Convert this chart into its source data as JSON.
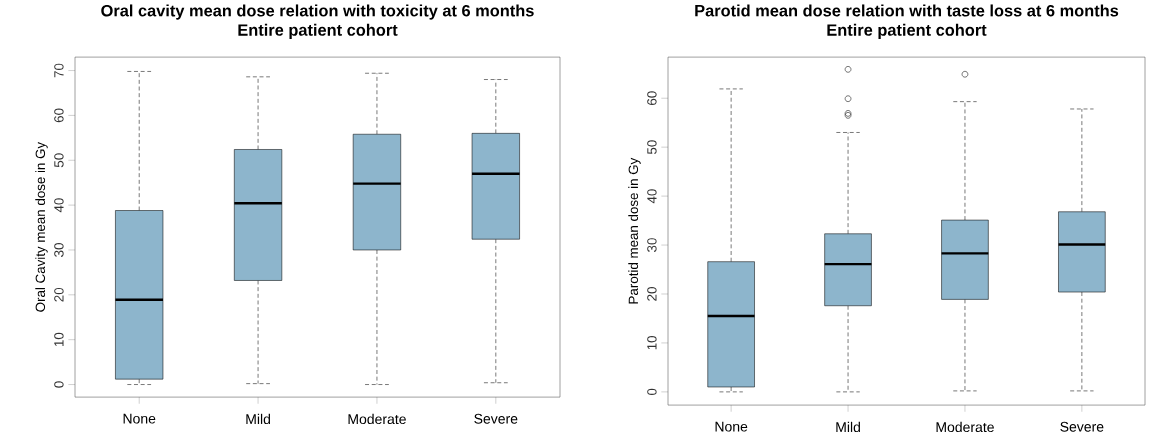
{
  "chart_data": [
    {
      "type": "box",
      "title": "Oral cavity mean dose relation with toxicity at 6 months",
      "subtitle": "Entire patient cohort",
      "ylabel": "Oral Cavity mean dose in Gy",
      "categories": [
        "None",
        "Mild",
        "Moderate",
        "Severe"
      ],
      "color": "#8db5cc",
      "ylim": [
        -2.8,
        73
      ],
      "yticks": [
        0,
        10,
        20,
        30,
        40,
        50,
        60,
        70
      ],
      "boxes": [
        {
          "low": 0,
          "q1": 1.2,
          "median": 18.9,
          "q3": 38.8,
          "high": 69.8
        },
        {
          "low": 0.2,
          "q1": 23.2,
          "median": 40.4,
          "q3": 52.4,
          "high": 68.6
        },
        {
          "low": 0,
          "q1": 30,
          "median": 44.8,
          "q3": 55.8,
          "high": 69.4
        },
        {
          "low": 0.4,
          "q1": 32.4,
          "median": 47,
          "q3": 56,
          "high": 68
        }
      ]
    },
    {
      "type": "box",
      "title": "Parotid mean dose relation with taste loss at 6 months",
      "subtitle": "Entire patient cohort",
      "ylabel": "Parotid mean dose in Gy",
      "categories": [
        "None",
        "Mild",
        "Moderate",
        "Severe"
      ],
      "color": "#8db5cc",
      "ylim": [
        -2.7,
        68.4
      ],
      "yticks": [
        0,
        10,
        20,
        30,
        40,
        50,
        60
      ],
      "boxes": [
        {
          "low": 0,
          "q1": 1,
          "median": 15.5,
          "q3": 26.6,
          "high": 61.9
        },
        {
          "low": 0,
          "q1": 17.6,
          "median": 26.1,
          "q3": 32.3,
          "high": 53,
          "outliers": [
            56.5,
            56.9,
            59.9,
            65.9
          ]
        },
        {
          "low": 0.2,
          "q1": 18.9,
          "median": 28.3,
          "q3": 35.1,
          "high": 59.3,
          "outliers": [
            64.9
          ]
        },
        {
          "low": 0.2,
          "q1": 20.4,
          "median": 30.1,
          "q3": 36.8,
          "high": 57.8
        }
      ]
    }
  ]
}
